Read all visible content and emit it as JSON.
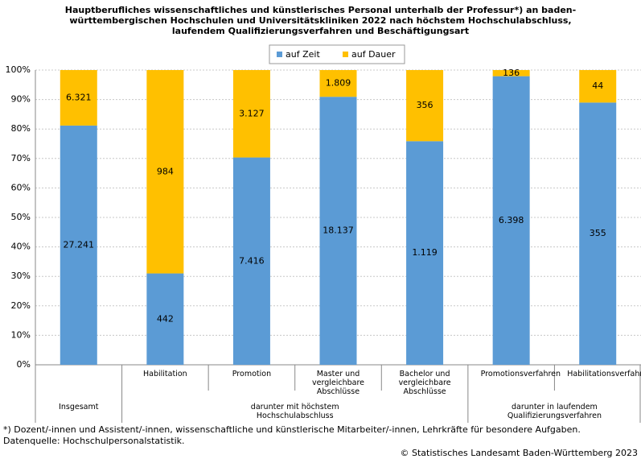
{
  "chart_data": {
    "type": "bar",
    "stack": "percent",
    "title": [
      "Hauptberufliches wissenschaftliches und künstlerisches Personal unterhalb der Professur*) an baden-",
      "württembergischen Hochschulen und Universitätskliniken 2022 nach höchstem Hochschulabschluss,",
      "laufendem Qualifizierungsverfahren und Beschäftigungsart"
    ],
    "categories": [
      null,
      "Habilitation",
      "Promotion",
      "Master und vergleichbare Abschlüsse",
      "Bachelor und vergleichbare Abschlüsse",
      "Promotionsverfahren",
      "Habilitationsverfahren"
    ],
    "category_groups": [
      "Insgesamt",
      "darunter mit höchstem Hochschulabschluss",
      "darunter mit höchstem Hochschulabschluss",
      "darunter mit höchstem Hochschulabschluss",
      "darunter mit höchstem Hochschulabschluss",
      "darunter in laufendem Qualifizierungsverfahren",
      "darunter in laufendem Qualifizierungsverfahren"
    ],
    "series": [
      {
        "name": "auf Zeit",
        "color": "#5b9bd5",
        "values": [
          27241,
          442,
          7416,
          18137,
          1119,
          6398,
          355
        ],
        "value_labels": [
          "27.241",
          "442",
          "7.416",
          "18.137",
          "1.119",
          "6.398",
          "355"
        ]
      },
      {
        "name": "auf Dauer",
        "color": "#ffc000",
        "values": [
          6321,
          984,
          3127,
          1809,
          356,
          136,
          44
        ],
        "value_labels": [
          "6.321",
          "984",
          "3.127",
          "1.809",
          "356",
          "136",
          "44"
        ]
      }
    ],
    "ylim": [
      0,
      100
    ],
    "yticks": [
      {
        "value": 0,
        "label": "0%"
      },
      {
        "value": 10,
        "label": "10%"
      },
      {
        "value": 20,
        "label": "20%"
      },
      {
        "value": 30,
        "label": "30%"
      },
      {
        "value": 40,
        "label": "40%"
      },
      {
        "value": 50,
        "label": "50%"
      },
      {
        "value": 60,
        "label": "60%"
      },
      {
        "value": 70,
        "label": "70%"
      },
      {
        "value": 80,
        "label": "80%"
      },
      {
        "value": 90,
        "label": "90%"
      },
      {
        "value": 100,
        "label": "100%"
      }
    ],
    "grid": true,
    "legend": "top",
    "notes": [
      "*) Dozent/-innen und Assistent/-innen, wissenschaftliche und künstlerische Mitarbeiter/-innen, Lehrkräfte für besondere Aufgaben.",
      "Datenquelle: Hochschulpersonalstatistik."
    ],
    "source": "© Statistisches Landesamt Baden-Württemberg 2023"
  }
}
